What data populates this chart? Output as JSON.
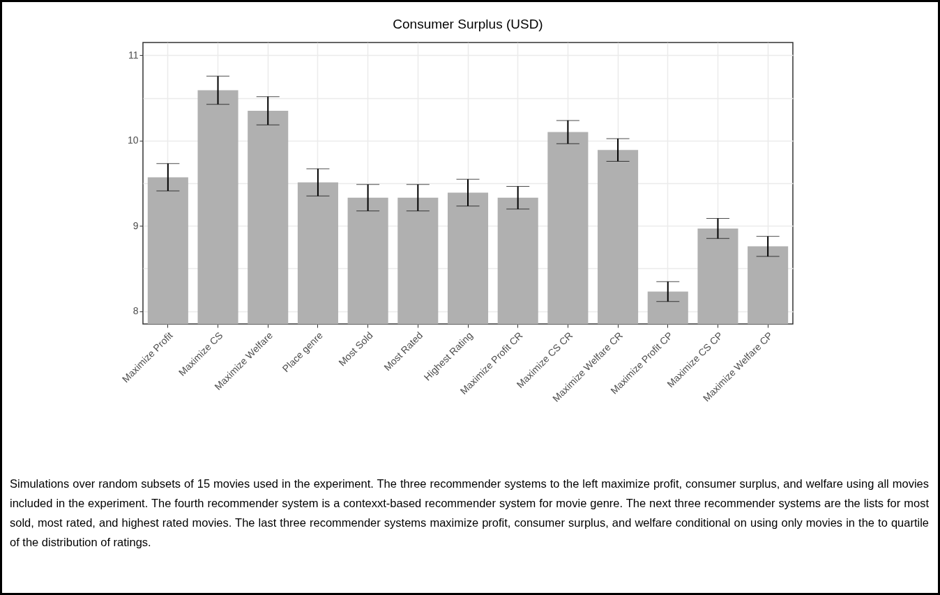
{
  "chart_data": {
    "type": "bar",
    "title": "Consumer Surplus (USD)",
    "categories": [
      "Maximize Profit",
      "Maximize CS",
      "Maximize Welfare",
      "Place genre",
      "Most Sold",
      "Most Rated",
      "Highest Rating",
      "Maximize Profit CR",
      "Maximize CS CR",
      "Maximize Welfare CR",
      "Maximize Profit CP",
      "Maximize CS CP",
      "Maximize Welfare CP"
    ],
    "values": [
      9.57,
      10.59,
      10.35,
      9.51,
      9.33,
      9.33,
      9.39,
      9.33,
      10.1,
      9.89,
      8.23,
      8.97,
      8.76
    ],
    "errors": [
      0.16,
      0.165,
      0.165,
      0.16,
      0.155,
      0.155,
      0.157,
      0.133,
      0.136,
      0.133,
      0.117,
      0.118,
      0.118
    ],
    "color": "#b0b0b0",
    "ylim": [
      7.85,
      11.15
    ],
    "yticks": [
      8,
      {
        "value": 8.5,
        "label": null
      },
      9,
      {
        "value": 9.5,
        "label": null
      },
      10,
      {
        "value": 10.5,
        "label": null
      },
      11
    ],
    "grid": true,
    "annotations": [
      "Simulations over random subsets of 15 movies used in the experiment.  The three recommender systems to the left maximize profit, consumer surplus, and welfare using all movies included in the experiment.  The fourth recommender system is a contexxt-based recommender system for movie genre.  The next three recommender systems are the lists for most sold, most rated, and highest rated movies.  The last three recommender systems maximize profit, consumer surplus, and welfare conditional on using only movies in the to quartile of the distribution of ratings."
    ]
  }
}
